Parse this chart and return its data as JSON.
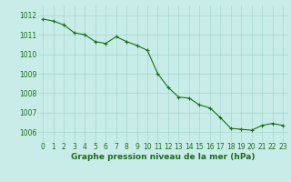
{
  "x": [
    0,
    1,
    2,
    3,
    4,
    5,
    6,
    7,
    8,
    9,
    10,
    11,
    12,
    13,
    14,
    15,
    16,
    17,
    18,
    19,
    20,
    21,
    22,
    23
  ],
  "y": [
    1011.8,
    1011.7,
    1011.5,
    1011.1,
    1011.0,
    1010.65,
    1010.55,
    1010.9,
    1010.65,
    1010.45,
    1010.2,
    1009.0,
    1008.3,
    1007.8,
    1007.75,
    1007.4,
    1007.25,
    1006.75,
    1006.2,
    1006.15,
    1006.1,
    1006.35,
    1006.45,
    1006.35
  ],
  "line_color": "#1a6e1a",
  "marker": "+",
  "marker_color": "#1a6e1a",
  "bg_color": "#c8ece8",
  "grid_color": "#a8d8d0",
  "xlabel": "Graphe pression niveau de la mer (hPa)",
  "xlabel_color": "#1a6e1a",
  "tick_color": "#1a6e1a",
  "ylim": [
    1005.5,
    1012.5
  ],
  "xlim": [
    -0.5,
    23.5
  ],
  "yticks": [
    1006,
    1007,
    1008,
    1009,
    1010,
    1011,
    1012
  ],
  "xticks": [
    0,
    1,
    2,
    3,
    4,
    5,
    6,
    7,
    8,
    9,
    10,
    11,
    12,
    13,
    14,
    15,
    16,
    17,
    18,
    19,
    20,
    21,
    22,
    23
  ],
  "fontsize_xlabel": 6.5,
  "fontsize_ticks": 5.5,
  "linewidth": 0.8,
  "markersize": 3.0
}
